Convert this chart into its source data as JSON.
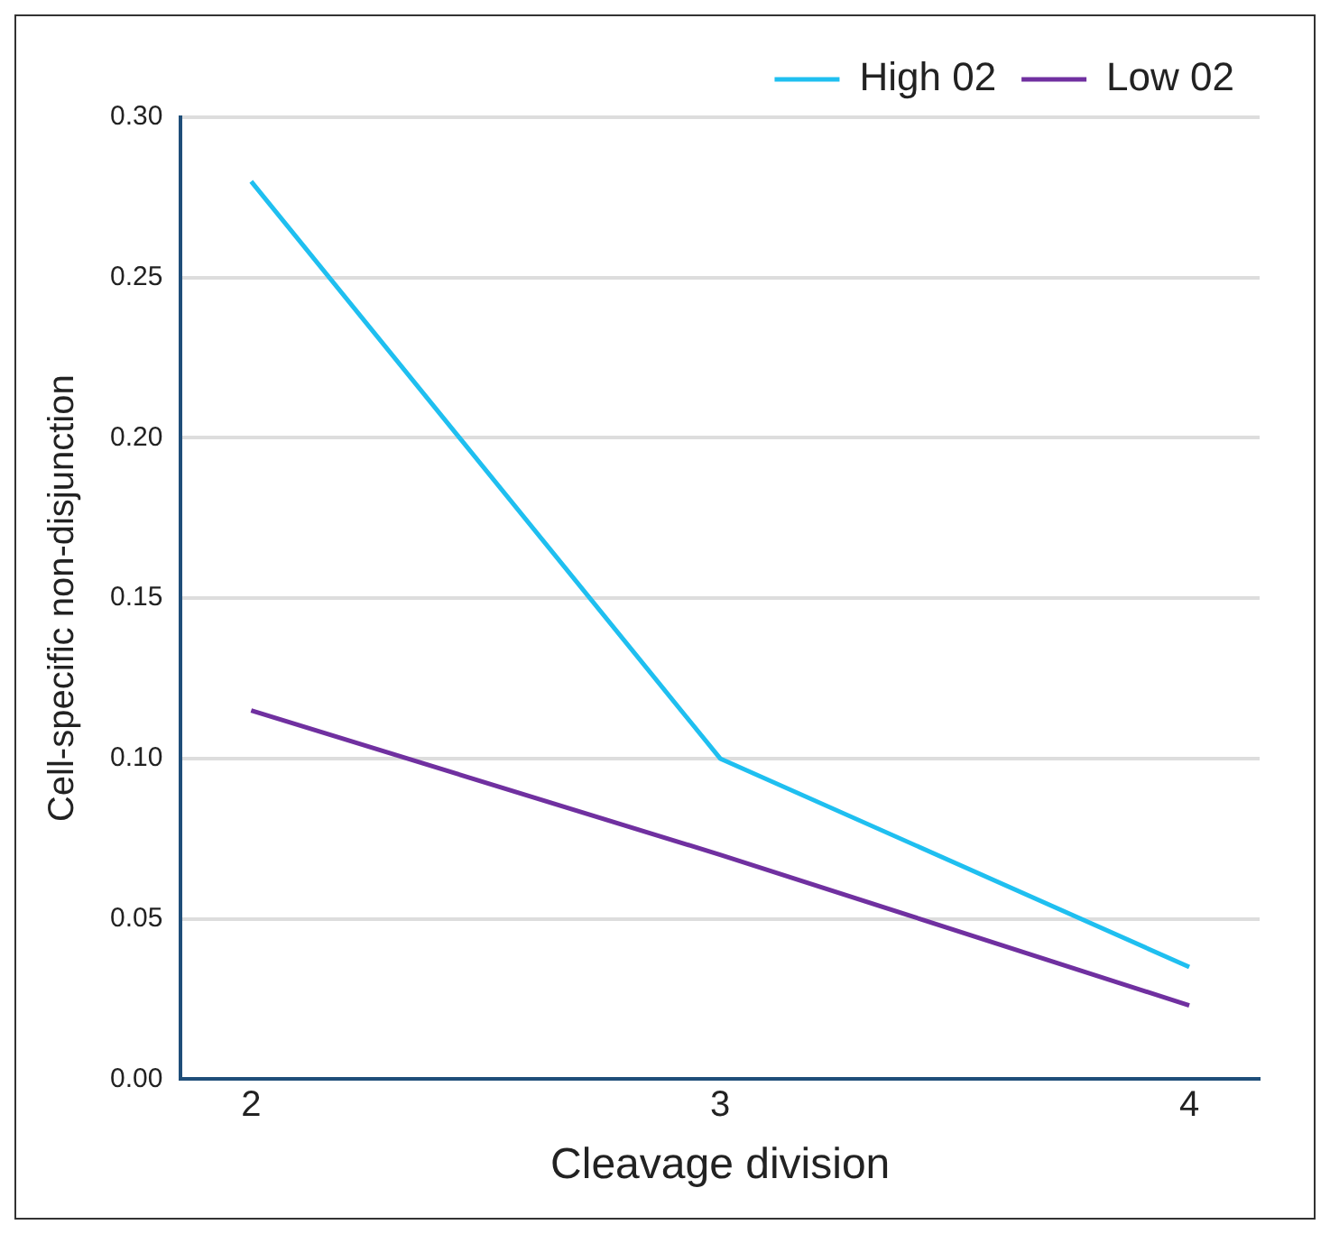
{
  "chart_data": {
    "type": "line",
    "xlabel": "Cleavage division",
    "ylabel": "Cell-specific non-disjunction",
    "x": [
      2,
      3,
      4
    ],
    "xlim": [
      1.85,
      4.15
    ],
    "xticks": [
      2,
      3,
      4
    ],
    "ylim": [
      0,
      0.3
    ],
    "yticks": [
      {
        "value": 0,
        "label": "0.00"
      },
      {
        "value": 0.05,
        "label": "0.05"
      },
      {
        "value": 0.1,
        "label": "0.10"
      },
      {
        "value": 0.15,
        "label": "0.15"
      },
      {
        "value": 0.2,
        "label": "0.20"
      },
      {
        "value": 0.25,
        "label": "0.25"
      },
      {
        "value": 0.3,
        "label": "0.30"
      }
    ],
    "series": [
      {
        "name": "High 02",
        "color": "#1fbff0",
        "values": [
          0.28,
          0.1,
          0.035
        ]
      },
      {
        "name": "Low 02",
        "color": "#7030a0",
        "values": [
          0.115,
          0.07,
          0.023
        ]
      }
    ],
    "grid": "y",
    "legend": "top right",
    "marker": "none",
    "line_style": "solid"
  }
}
